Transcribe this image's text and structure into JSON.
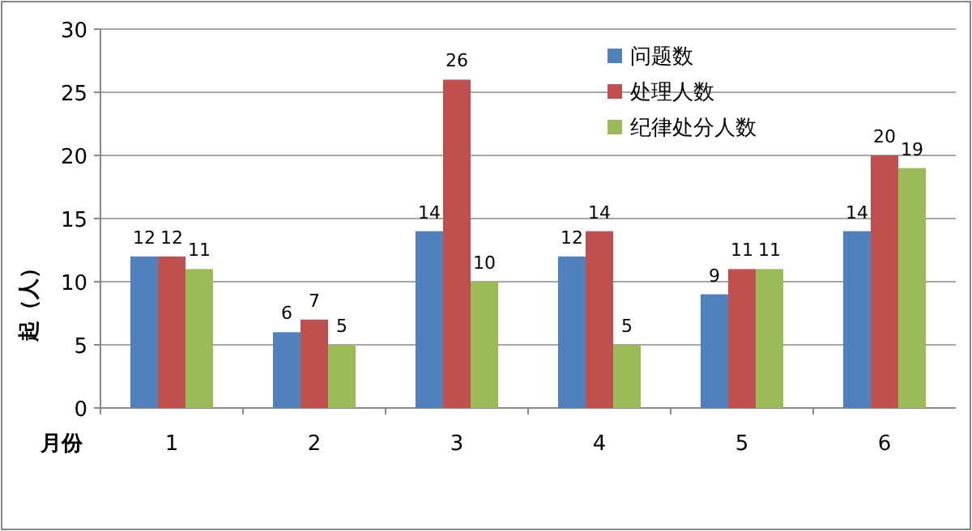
{
  "chart_data": {
    "type": "bar",
    "xlabel": "月份",
    "ylabel": "起（人）",
    "categories": [
      "1",
      "2",
      "3",
      "4",
      "5",
      "6"
    ],
    "series": [
      {
        "name": "问题数",
        "color": "#4f81bd",
        "values": [
          12,
          6,
          14,
          12,
          9,
          14
        ]
      },
      {
        "name": "处理人数",
        "color": "#c0504d",
        "values": [
          12,
          7,
          26,
          14,
          11,
          20
        ]
      },
      {
        "name": "纪律处分人数",
        "color": "#9bbb59",
        "values": [
          11,
          5,
          10,
          5,
          11,
          19
        ]
      }
    ],
    "ylim": [
      0,
      30
    ],
    "yticks": [
      0,
      5,
      10,
      15,
      20,
      25,
      30
    ],
    "grid": "y",
    "legend": "top right",
    "data_labels": true
  }
}
